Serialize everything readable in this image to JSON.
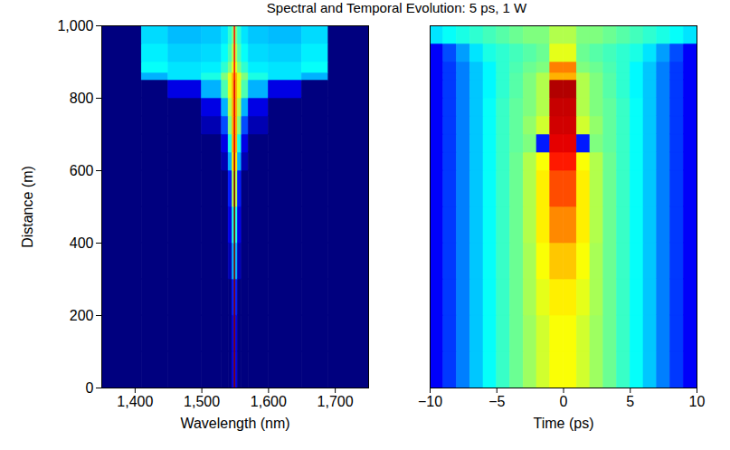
{
  "title": "Spectral and Temporal Evolution: 5 ps, 1 W",
  "chart_data": [
    {
      "type": "heatmap",
      "xlabel": "Wavelength (nm)",
      "ylabel": "Distance (m)",
      "xlim": [
        1350,
        1750
      ],
      "ylim": [
        0,
        1000
      ],
      "xticks": [
        1400,
        1500,
        1600,
        1700
      ],
      "yticks": [
        0,
        200,
        400,
        600,
        800,
        1000
      ],
      "zlim": [
        0,
        1
      ],
      "x_edges": [
        1350,
        1410,
        1450,
        1500,
        1530,
        1540,
        1546,
        1549,
        1551,
        1554,
        1560,
        1570,
        1600,
        1650,
        1690,
        1750
      ],
      "y_edges": [
        0,
        100,
        200,
        300,
        400,
        500,
        600,
        650,
        700,
        750,
        800,
        850,
        870,
        900,
        950,
        1000
      ],
      "values": [
        [
          0,
          0,
          0,
          0,
          0,
          0,
          0.1,
          1,
          0.1,
          0,
          0,
          0,
          0,
          0,
          0
        ],
        [
          0,
          0,
          0,
          0,
          0,
          0,
          0.1,
          1,
          0.1,
          0,
          0,
          0,
          0,
          0,
          0
        ],
        [
          0,
          0,
          0,
          0,
          0,
          0,
          0.15,
          1,
          0.15,
          0,
          0,
          0,
          0,
          0,
          0
        ],
        [
          0,
          0,
          0,
          0,
          0,
          0.05,
          0.3,
          1,
          0.3,
          0.05,
          0,
          0,
          0,
          0,
          0
        ],
        [
          0,
          0,
          0,
          0,
          0,
          0.1,
          0.4,
          1,
          0.4,
          0.1,
          0,
          0,
          0,
          0,
          0
        ],
        [
          0,
          0,
          0,
          0,
          0,
          0.15,
          0.55,
          1,
          0.55,
          0.15,
          0,
          0,
          0,
          0,
          0
        ],
        [
          0,
          0,
          0,
          0,
          0.05,
          0.3,
          0.65,
          0.95,
          0.65,
          0.3,
          0.05,
          0,
          0,
          0,
          0
        ],
        [
          0,
          0,
          0,
          0,
          0.1,
          0.4,
          0.7,
          0.9,
          0.7,
          0.4,
          0.1,
          0,
          0,
          0,
          0
        ],
        [
          0,
          0,
          0,
          0.05,
          0.2,
          0.5,
          0.7,
          0.9,
          0.7,
          0.5,
          0.2,
          0.05,
          0,
          0,
          0
        ],
        [
          0,
          0,
          0,
          0.1,
          0.3,
          0.55,
          0.7,
          0.9,
          0.7,
          0.55,
          0.3,
          0.1,
          0,
          0,
          0
        ],
        [
          0,
          0,
          0.1,
          0.3,
          0.45,
          0.6,
          0.7,
          0.9,
          0.7,
          0.6,
          0.45,
          0.3,
          0.1,
          0,
          0
        ],
        [
          0,
          0.3,
          0.35,
          0.4,
          0.5,
          0.6,
          0.7,
          0.85,
          0.7,
          0.6,
          0.5,
          0.4,
          0.35,
          0.3,
          0
        ],
        [
          0,
          0.38,
          0.35,
          0.36,
          0.42,
          0.5,
          0.6,
          0.85,
          0.6,
          0.5,
          0.42,
          0.36,
          0.35,
          0.38,
          0
        ],
        [
          0,
          0.36,
          0.33,
          0.34,
          0.38,
          0.45,
          0.55,
          0.85,
          0.55,
          0.45,
          0.38,
          0.34,
          0.33,
          0.36,
          0
        ],
        [
          0,
          0.34,
          0.31,
          0.32,
          0.35,
          0.42,
          0.5,
          0.85,
          0.5,
          0.42,
          0.35,
          0.32,
          0.31,
          0.34,
          0
        ]
      ]
    },
    {
      "type": "heatmap",
      "xlabel": "Time (ps)",
      "xlim": [
        -10,
        10
      ],
      "ylim": [
        0,
        1000
      ],
      "xticks": [
        -10,
        -5,
        0,
        5,
        10
      ],
      "tick_labels": "x",
      "zlim": [
        0,
        1
      ],
      "x_edges": [
        -10,
        -9,
        -8,
        -7,
        -6,
        -5,
        -4,
        -3,
        -2,
        -1,
        0,
        1,
        2,
        3,
        4,
        5,
        6,
        7,
        8,
        9,
        10
      ],
      "y_edges": [
        0,
        100,
        200,
        300,
        400,
        500,
        600,
        650,
        700,
        750,
        800,
        850,
        870,
        900,
        950,
        1000
      ],
      "values": [
        [
          0.12,
          0.18,
          0.25,
          0.32,
          0.38,
          0.43,
          0.48,
          0.53,
          0.58,
          0.62,
          0.62,
          0.58,
          0.53,
          0.48,
          0.43,
          0.38,
          0.32,
          0.25,
          0.18,
          0.12
        ],
        [
          0.12,
          0.18,
          0.25,
          0.32,
          0.38,
          0.43,
          0.48,
          0.53,
          0.58,
          0.62,
          0.62,
          0.58,
          0.53,
          0.48,
          0.43,
          0.38,
          0.32,
          0.25,
          0.18,
          0.12
        ],
        [
          0.12,
          0.18,
          0.25,
          0.32,
          0.38,
          0.43,
          0.48,
          0.54,
          0.6,
          0.64,
          0.64,
          0.6,
          0.54,
          0.48,
          0.43,
          0.38,
          0.32,
          0.25,
          0.18,
          0.12
        ],
        [
          0.12,
          0.18,
          0.25,
          0.32,
          0.38,
          0.43,
          0.48,
          0.54,
          0.62,
          0.68,
          0.68,
          0.62,
          0.54,
          0.48,
          0.43,
          0.38,
          0.32,
          0.25,
          0.18,
          0.12
        ],
        [
          0.12,
          0.18,
          0.25,
          0.32,
          0.38,
          0.43,
          0.48,
          0.55,
          0.64,
          0.74,
          0.74,
          0.64,
          0.55,
          0.48,
          0.43,
          0.38,
          0.32,
          0.25,
          0.18,
          0.12
        ],
        [
          0.12,
          0.18,
          0.25,
          0.32,
          0.38,
          0.43,
          0.48,
          0.55,
          0.64,
          0.8,
          0.8,
          0.64,
          0.55,
          0.48,
          0.43,
          0.38,
          0.32,
          0.25,
          0.18,
          0.12
        ],
        [
          0.12,
          0.18,
          0.25,
          0.32,
          0.38,
          0.43,
          0.48,
          0.55,
          0.62,
          0.85,
          0.85,
          0.62,
          0.55,
          0.48,
          0.43,
          0.38,
          0.32,
          0.25,
          0.18,
          0.12
        ],
        [
          0.12,
          0.18,
          0.25,
          0.32,
          0.38,
          0.43,
          0.47,
          0.5,
          0.15,
          0.9,
          0.9,
          0.15,
          0.5,
          0.47,
          0.43,
          0.38,
          0.32,
          0.25,
          0.18,
          0.12
        ],
        [
          0.12,
          0.18,
          0.25,
          0.32,
          0.38,
          0.43,
          0.47,
          0.52,
          0.58,
          0.92,
          0.92,
          0.58,
          0.52,
          0.47,
          0.43,
          0.38,
          0.32,
          0.25,
          0.18,
          0.12
        ],
        [
          0.12,
          0.18,
          0.25,
          0.32,
          0.38,
          0.43,
          0.47,
          0.5,
          0.55,
          0.93,
          0.93,
          0.55,
          0.5,
          0.47,
          0.43,
          0.38,
          0.32,
          0.25,
          0.18,
          0.12
        ],
        [
          0.12,
          0.18,
          0.25,
          0.32,
          0.37,
          0.42,
          0.46,
          0.5,
          0.55,
          0.95,
          0.95,
          0.55,
          0.5,
          0.46,
          0.42,
          0.37,
          0.32,
          0.25,
          0.18,
          0.12
        ],
        [
          0.12,
          0.18,
          0.25,
          0.32,
          0.37,
          0.42,
          0.46,
          0.5,
          0.55,
          0.7,
          0.7,
          0.55,
          0.5,
          0.46,
          0.42,
          0.37,
          0.32,
          0.25,
          0.18,
          0.12
        ],
        [
          0.12,
          0.18,
          0.25,
          0.32,
          0.37,
          0.42,
          0.45,
          0.48,
          0.5,
          0.75,
          0.75,
          0.5,
          0.48,
          0.45,
          0.42,
          0.37,
          0.32,
          0.25,
          0.18,
          0.12
        ],
        [
          0.12,
          0.2,
          0.28,
          0.35,
          0.4,
          0.42,
          0.44,
          0.46,
          0.48,
          0.6,
          0.6,
          0.48,
          0.46,
          0.44,
          0.42,
          0.4,
          0.35,
          0.28,
          0.2,
          0.12
        ],
        [
          0.35,
          0.38,
          0.4,
          0.42,
          0.44,
          0.46,
          0.48,
          0.5,
          0.5,
          0.55,
          0.55,
          0.5,
          0.5,
          0.48,
          0.46,
          0.44,
          0.42,
          0.4,
          0.38,
          0.35
        ]
      ]
    }
  ]
}
